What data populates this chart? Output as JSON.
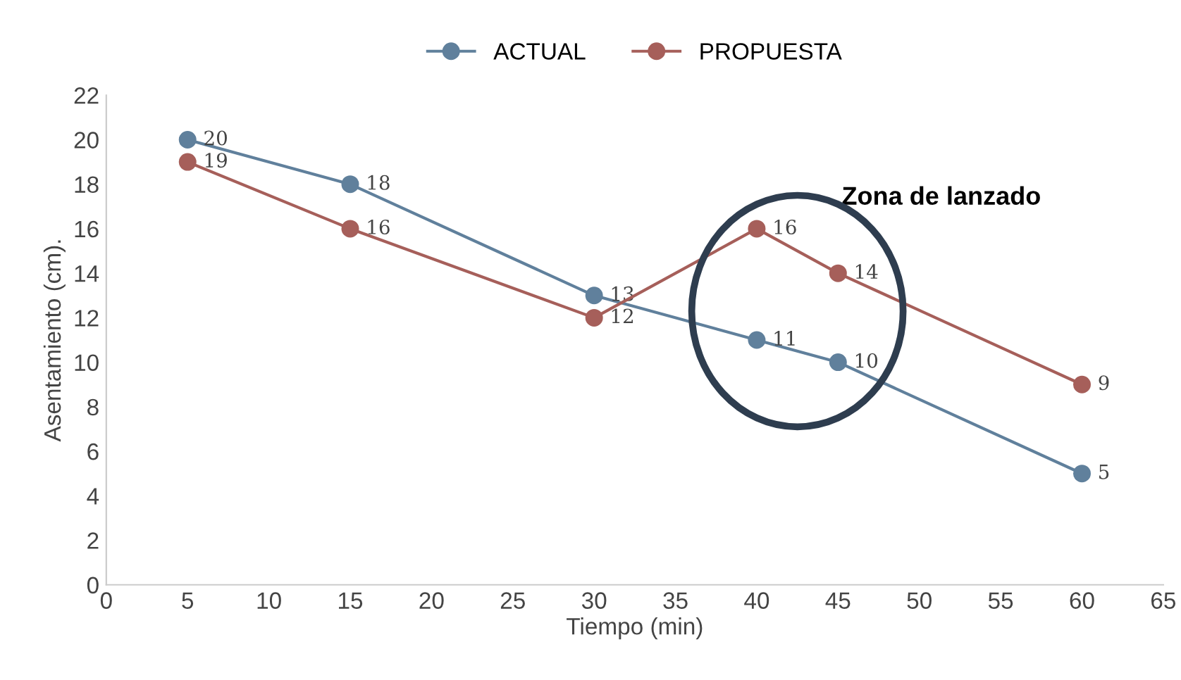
{
  "chart_data": {
    "type": "line",
    "xlabel": "Tiempo (min)",
    "ylabel": "Asentamiento (cm).",
    "x": [
      5,
      15,
      30,
      40,
      45,
      60
    ],
    "series": [
      {
        "name": "ACTUAL",
        "color": "#60809c",
        "values": [
          20,
          18,
          13,
          11,
          10,
          5
        ]
      },
      {
        "name": "PROPUESTA",
        "color": "#a65f5a",
        "values": [
          19,
          16,
          12,
          16,
          14,
          9
        ]
      }
    ],
    "xlim": [
      0,
      65
    ],
    "xticks": [
      0,
      5,
      10,
      15,
      20,
      25,
      30,
      35,
      40,
      45,
      50,
      55,
      60,
      65
    ],
    "ylim": [
      0,
      22
    ],
    "yticks": [
      0,
      2,
      4,
      6,
      8,
      10,
      12,
      14,
      16,
      18,
      20,
      22
    ],
    "annotations": [
      "Zona de lanzado"
    ],
    "data_labels": true,
    "legend": "top",
    "marker": "circle",
    "line_style": "solid",
    "grid": false
  }
}
